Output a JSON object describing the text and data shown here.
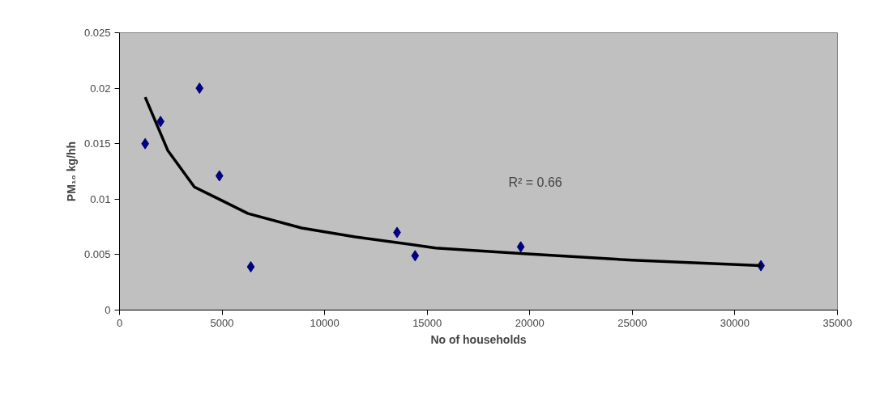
{
  "chart_data": {
    "type": "scatter",
    "xlabel": "No of households",
    "ylabel": "PM₁₀ kg/hh",
    "annotations": [
      "R² = 0.66"
    ],
    "xlim": [
      0,
      35000
    ],
    "xticks": [
      0,
      5000,
      10000,
      15000,
      20000,
      25000,
      30000,
      35000
    ],
    "ylim": [
      0,
      0.025
    ],
    "yticks": [
      0,
      0.005,
      0.01,
      0.015,
      0.02,
      0.025
    ],
    "grid": false,
    "series": [
      {
        "color": "#000080",
        "marker": "diamond",
        "x": [
          1250,
          2000,
          3900,
          4870,
          6400,
          13530,
          14410,
          19560,
          31270
        ],
        "values": [
          0.015,
          0.017,
          0.02,
          0.0121,
          0.0039,
          0.007,
          0.0049,
          0.0057,
          0.004
        ]
      },
      {
        "type": "line",
        "marker": "none",
        "color": "#000000",
        "x": [
          1250,
          2350,
          3650,
          4960,
          6270,
          8880,
          11490,
          15410,
          19560,
          25000,
          31270
        ],
        "values": [
          0.0192,
          0.0144,
          0.0111,
          0.0099,
          0.0087,
          0.0074,
          0.0066,
          0.0056,
          0.0051,
          0.0045,
          0.004
        ]
      }
    ]
  }
}
